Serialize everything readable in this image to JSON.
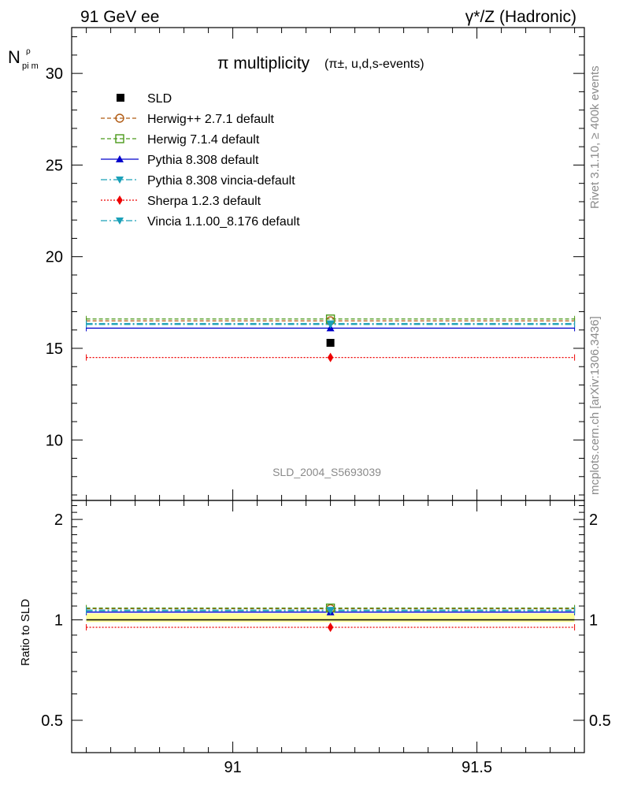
{
  "header": {
    "left": "91 GeV ee",
    "right": "γ*/Z (Hadronic)"
  },
  "side_labels": {
    "rivet": "Rivet 3.1.10, ≥ 400k events",
    "mcplots": "mcplots.cern.ch [arXiv:1306.3436]"
  },
  "analysis_tag": "SLD_2004_S5693039",
  "chart_data": [
    {
      "type": "line",
      "title_main": "π multiplicity",
      "title_sub": "(π±, u,d,s-events)",
      "ylabel": "N",
      "ylabel_sub": "pi m",
      "ylabel_sup": "ρ",
      "xlim": [
        90.67,
        91.72
      ],
      "ylim": [
        6.7,
        32.5
      ],
      "yticks": [
        10,
        15,
        20,
        25,
        30
      ],
      "xticks": [
        91,
        91.5
      ],
      "x_point": 91.2,
      "grid": false,
      "legend": "top-left",
      "data": {
        "name": "SLD",
        "value": 15.3,
        "color": "#000000"
      },
      "series": [
        {
          "name": "Herwig++ 2.7.1 default",
          "value": 16.5,
          "color": "#b05a12",
          "dash": "5,3",
          "marker": "circle-open"
        },
        {
          "name": "Herwig 7.1.4 default",
          "value": 16.6,
          "color": "#4a9a1a",
          "dash": "5,3",
          "marker": "square-open"
        },
        {
          "name": "Pythia 8.308 default",
          "value": 16.1,
          "color": "#0000cc",
          "dash": "",
          "marker": "triangle-up"
        },
        {
          "name": "Pythia 8.308 vincia-default",
          "value": 16.3,
          "color": "#1aa0b8",
          "dash": "8,3,2,3",
          "marker": "triangle-down"
        },
        {
          "name": "Sherpa 1.2.3 default",
          "value": 14.5,
          "color": "#ee0000",
          "dash": "2,2",
          "marker": "diamond"
        },
        {
          "name": "Vincia 1.1.00_8.176 default",
          "value": 16.35,
          "color": "#1aa0b8",
          "dash": "8,3,2,3",
          "marker": "triangle-down"
        }
      ]
    },
    {
      "type": "line",
      "ylabel": "Ratio to SLD",
      "ylim": [
        0.4,
        2.28
      ],
      "yticks": [
        0.5,
        1,
        2
      ],
      "ytick_labels": [
        "0.5",
        "1",
        "2"
      ],
      "xticks": [
        91,
        91.5
      ],
      "xtick_labels": [
        "91",
        "91.5"
      ],
      "band": {
        "low": 0.985,
        "high": 1.045,
        "color": "#ffff99"
      },
      "reference": 1.0,
      "series_ratios": [
        1.08,
        1.085,
        1.055,
        1.065,
        0.95,
        1.07
      ]
    }
  ]
}
